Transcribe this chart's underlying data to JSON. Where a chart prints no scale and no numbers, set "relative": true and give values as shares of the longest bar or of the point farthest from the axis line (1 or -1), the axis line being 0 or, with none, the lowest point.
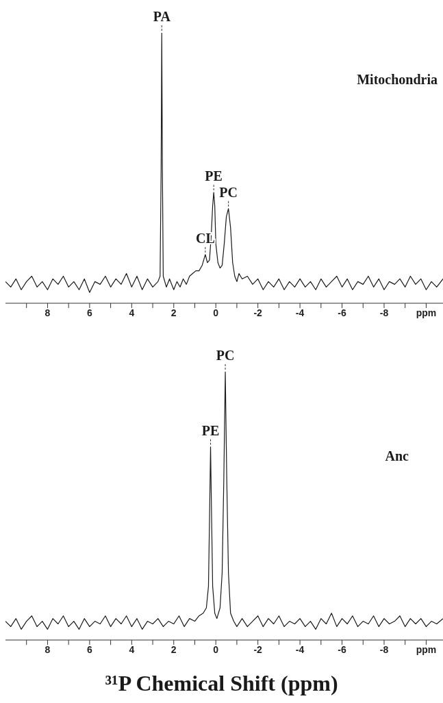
{
  "chart_data": [
    {
      "type": "line",
      "relative": true,
      "color": "#1a1a1a",
      "x": [
        10,
        9.75,
        9.5,
        9.25,
        9,
        8.75,
        8.5,
        8.25,
        8,
        7.75,
        7.5,
        7.25,
        7,
        6.75,
        6.5,
        6.25,
        6,
        5.75,
        5.5,
        5.25,
        5,
        4.75,
        4.5,
        4.25,
        4,
        3.75,
        3.5,
        3.25,
        3,
        2.75,
        2.65,
        2.6,
        2.57,
        2.54,
        2.5,
        2.35,
        2.2,
        2,
        1.85,
        1.7,
        1.55,
        1.4,
        1.25,
        1.1,
        0.95,
        0.8,
        0.65,
        0.5,
        0.4,
        0.3,
        0.22,
        0.15,
        0.1,
        0.05,
        0,
        -0.1,
        -0.2,
        -0.3,
        -0.4,
        -0.5,
        -0.6,
        -0.7,
        -0.8,
        -0.9,
        -1,
        -1.1,
        -1.25,
        -1.5,
        -1.75,
        -2,
        -2.25,
        -2.5,
        -2.75,
        -3,
        -3.25,
        -3.5,
        -3.75,
        -4,
        -4.25,
        -4.5,
        -4.75,
        -5,
        -5.25,
        -5.5,
        -5.75,
        -6,
        -6.25,
        -6.5,
        -6.75,
        -7,
        -7.25,
        -7.5,
        -7.75,
        -8,
        -8.25,
        -8.5,
        -8.75,
        -9,
        -9.25,
        -9.5,
        -9.75,
        -10,
        -10.25,
        -10.5,
        -10.8
      ],
      "values": [
        0.08,
        0.06,
        0.09,
        0.05,
        0.08,
        0.1,
        0.06,
        0.08,
        0.05,
        0.09,
        0.07,
        0.1,
        0.06,
        0.08,
        0.05,
        0.09,
        0.04,
        0.08,
        0.07,
        0.1,
        0.06,
        0.09,
        0.07,
        0.11,
        0.06,
        0.1,
        0.05,
        0.09,
        0.06,
        0.08,
        0.1,
        0.5,
        1,
        0.5,
        0.1,
        0.06,
        0.09,
        0.05,
        0.08,
        0.06,
        0.09,
        0.07,
        0.1,
        0.11,
        0.12,
        0.12,
        0.14,
        0.18,
        0.15,
        0.16,
        0.25,
        0.36,
        0.41,
        0.36,
        0.22,
        0.15,
        0.13,
        0.14,
        0.22,
        0.32,
        0.35,
        0.28,
        0.15,
        0.1,
        0.08,
        0.11,
        0.09,
        0.1,
        0.07,
        0.09,
        0.05,
        0.08,
        0.06,
        0.09,
        0.05,
        0.08,
        0.06,
        0.09,
        0.06,
        0.08,
        0.05,
        0.09,
        0.06,
        0.08,
        0.1,
        0.06,
        0.09,
        0.05,
        0.08,
        0.07,
        0.1,
        0.06,
        0.09,
        0.05,
        0.08,
        0.07,
        0.09,
        0.06,
        0.1,
        0.07,
        0.09,
        0.05,
        0.08,
        0.06,
        0.09
      ],
      "xlim": [
        10,
        -10.8
      ],
      "xticks": [
        {
          "value": 9,
          "label": null
        },
        8,
        {
          "value": 7,
          "label": null
        },
        6,
        {
          "value": 5,
          "label": null
        },
        4,
        {
          "value": 3,
          "label": null
        },
        2,
        {
          "value": 1,
          "label": null
        },
        0,
        {
          "value": -1,
          "label": null
        },
        -2,
        {
          "value": -3,
          "label": null
        },
        -4,
        {
          "value": -5,
          "label": null
        },
        -6,
        {
          "value": -7,
          "label": null
        },
        -8,
        {
          "value": -9,
          "label": null
        },
        {
          "value": -10,
          "label": "ppm"
        }
      ],
      "annotations": [
        {
          "text": "PA",
          "x": 2.57,
          "y": 1
        },
        {
          "text": "PE",
          "x": 0.1,
          "y": 0.41
        },
        {
          "text": "PC",
          "x": -0.6,
          "y": 0.35
        },
        {
          "text": "CL",
          "x": 0.5,
          "y": 0.18
        },
        "Mitochondria"
      ]
    },
    {
      "type": "line",
      "relative": true,
      "color": "#1a1a1a",
      "x": [
        10,
        9.75,
        9.5,
        9.25,
        9,
        8.75,
        8.5,
        8.25,
        8,
        7.75,
        7.5,
        7.25,
        7,
        6.75,
        6.5,
        6.25,
        6,
        5.75,
        5.5,
        5.25,
        5,
        4.75,
        4.5,
        4.25,
        4,
        3.75,
        3.5,
        3.25,
        3,
        2.75,
        2.5,
        2.25,
        2,
        1.75,
        1.5,
        1.25,
        1,
        0.8,
        0.6,
        0.45,
        0.35,
        0.3,
        0.25,
        0.2,
        0.15,
        0.05,
        -0.05,
        -0.2,
        -0.3,
        -0.38,
        -0.45,
        -0.52,
        -0.6,
        -0.7,
        -0.85,
        -1,
        -1.25,
        -1.5,
        -1.75,
        -2,
        -2.25,
        -2.5,
        -2.75,
        -3,
        -3.25,
        -3.5,
        -3.75,
        -4,
        -4.25,
        -4.5,
        -4.75,
        -5,
        -5.25,
        -5.5,
        -5.75,
        -6,
        -6.25,
        -6.5,
        -6.75,
        -7,
        -7.25,
        -7.5,
        -7.75,
        -8,
        -8.25,
        -8.5,
        -8.75,
        -9,
        -9.25,
        -9.5,
        -9.75,
        -10,
        -10.25,
        -10.5,
        -10.8
      ],
      "values": [
        0.07,
        0.05,
        0.08,
        0.04,
        0.07,
        0.09,
        0.05,
        0.07,
        0.04,
        0.08,
        0.06,
        0.09,
        0.05,
        0.07,
        0.04,
        0.08,
        0.05,
        0.07,
        0.06,
        0.09,
        0.05,
        0.08,
        0.06,
        0.09,
        0.05,
        0.08,
        0.04,
        0.07,
        0.06,
        0.08,
        0.05,
        0.07,
        0.06,
        0.09,
        0.05,
        0.08,
        0.07,
        0.09,
        0.1,
        0.12,
        0.2,
        0.45,
        0.72,
        0.45,
        0.2,
        0.1,
        0.08,
        0.12,
        0.25,
        0.6,
        1,
        0.6,
        0.25,
        0.1,
        0.07,
        0.05,
        0.08,
        0.05,
        0.07,
        0.09,
        0.05,
        0.08,
        0.06,
        0.09,
        0.05,
        0.07,
        0.06,
        0.08,
        0.05,
        0.07,
        0.04,
        0.08,
        0.06,
        0.1,
        0.05,
        0.08,
        0.06,
        0.09,
        0.05,
        0.07,
        0.06,
        0.09,
        0.05,
        0.08,
        0.06,
        0.07,
        0.09,
        0.05,
        0.08,
        0.06,
        0.08,
        0.05,
        0.07,
        0.06,
        0.08
      ],
      "xlim": [
        10,
        -10.8
      ],
      "xticks": [
        {
          "value": 9,
          "label": null
        },
        8,
        {
          "value": 7,
          "label": null
        },
        6,
        {
          "value": 5,
          "label": null
        },
        4,
        {
          "value": 3,
          "label": null
        },
        2,
        {
          "value": 1,
          "label": null
        },
        0,
        {
          "value": -1,
          "label": null
        },
        -2,
        {
          "value": -3,
          "label": null
        },
        -4,
        {
          "value": -5,
          "label": null
        },
        -6,
        {
          "value": -7,
          "label": null
        },
        -8,
        {
          "value": -9,
          "label": null
        },
        {
          "value": -10,
          "label": "ppm"
        }
      ],
      "xlabel": "³¹P Chemical Shift (ppm)",
      "annotations": [
        {
          "text": "PE",
          "x": 0.25,
          "y": 0.72
        },
        {
          "text": "PC",
          "x": -0.45,
          "y": 1
        },
        "Anc"
      ]
    }
  ]
}
